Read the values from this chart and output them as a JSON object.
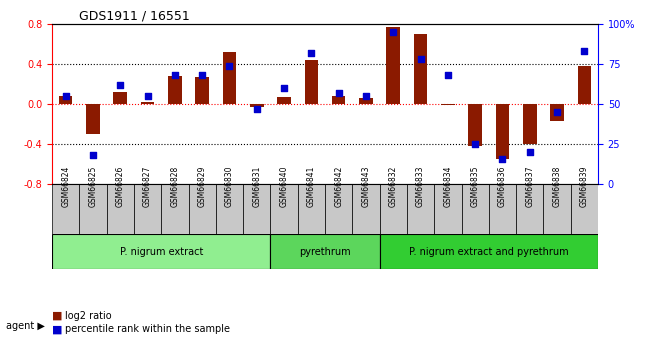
{
  "title": "GDS1911 / 16551",
  "samples": [
    "GSM66824",
    "GSM66825",
    "GSM66826",
    "GSM66827",
    "GSM66828",
    "GSM66829",
    "GSM66830",
    "GSM66831",
    "GSM66840",
    "GSM66841",
    "GSM66842",
    "GSM66843",
    "GSM66832",
    "GSM66833",
    "GSM66834",
    "GSM66835",
    "GSM66836",
    "GSM66837",
    "GSM66838",
    "GSM66839"
  ],
  "log2_ratio": [
    0.08,
    -0.3,
    0.12,
    0.02,
    0.28,
    0.27,
    0.52,
    -0.03,
    0.07,
    0.44,
    0.08,
    0.06,
    0.77,
    0.7,
    -0.01,
    -0.42,
    -0.55,
    -0.4,
    -0.17,
    0.38
  ],
  "pct_rank": [
    55,
    18,
    62,
    55,
    68,
    68,
    74,
    47,
    60,
    82,
    57,
    55,
    95,
    78,
    68,
    25,
    16,
    20,
    45,
    83
  ],
  "groups": [
    {
      "label": "P. nigrum extract",
      "start": 0,
      "end": 8,
      "color": "#90EE90"
    },
    {
      "label": "pyrethrum",
      "start": 8,
      "end": 12,
      "color": "#5CD65C"
    },
    {
      "label": "P. nigrum extract and pyrethrum",
      "start": 12,
      "end": 20,
      "color": "#32CD32"
    }
  ],
  "bar_color": "#8B1A00",
  "dot_color": "#0000CD",
  "ylim_left": [
    -0.8,
    0.8
  ],
  "ylim_right": [
    0,
    100
  ],
  "yticks_left": [
    -0.8,
    -0.4,
    0.0,
    0.4,
    0.8
  ],
  "yticks_right": [
    0,
    25,
    50,
    75,
    100
  ],
  "yticklabels_right": [
    "0",
    "25",
    "50",
    "75",
    "100%"
  ],
  "hlines": [
    -0.4,
    0.0,
    0.4
  ],
  "background_color": "#ffffff",
  "bar_width": 0.5
}
